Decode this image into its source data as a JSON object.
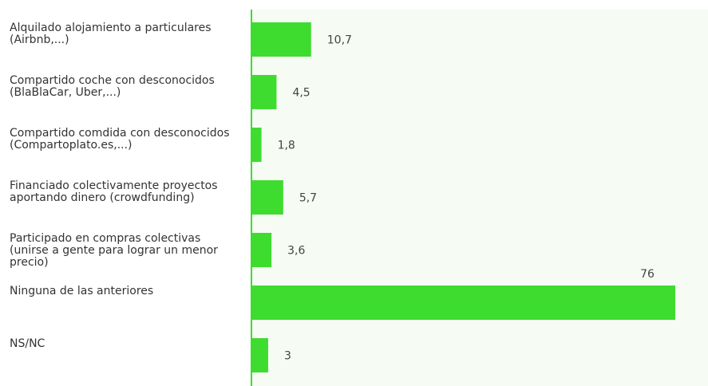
{
  "chart_data": {
    "type": "bar",
    "orientation": "horizontal",
    "categories": [
      "Alquilado alojamiento a particulares\n(Airbnb,...)",
      "Compartido coche con desconocidos\n(BlaBlaCar, Uber,...)",
      "Compartido comdida con desconocidos\n(Compartoplato.es,...)",
      "Financiado colectivamente proyectos\naportando dinero (crowdfunding)",
      "Participado en compras colectivas\n(unirse a gente para lograr un menor\nprecio)",
      "Ninguna de las anteriores",
      "NS/NC"
    ],
    "values": [
      10.7,
      4.5,
      1.8,
      5.7,
      3.6,
      76,
      3
    ],
    "value_labels": [
      "10,7",
      "4,5",
      "1,8",
      "5,7",
      "3,6",
      "76",
      "3"
    ],
    "title": "",
    "xlabel": "",
    "ylabel": "",
    "xlim": [
      0,
      78
    ],
    "grid": false,
    "legend": "none",
    "colors": {
      "bar": "#3ddc2f",
      "axis": "#3ddc2f",
      "plot_background": "#f6fbf4"
    }
  }
}
